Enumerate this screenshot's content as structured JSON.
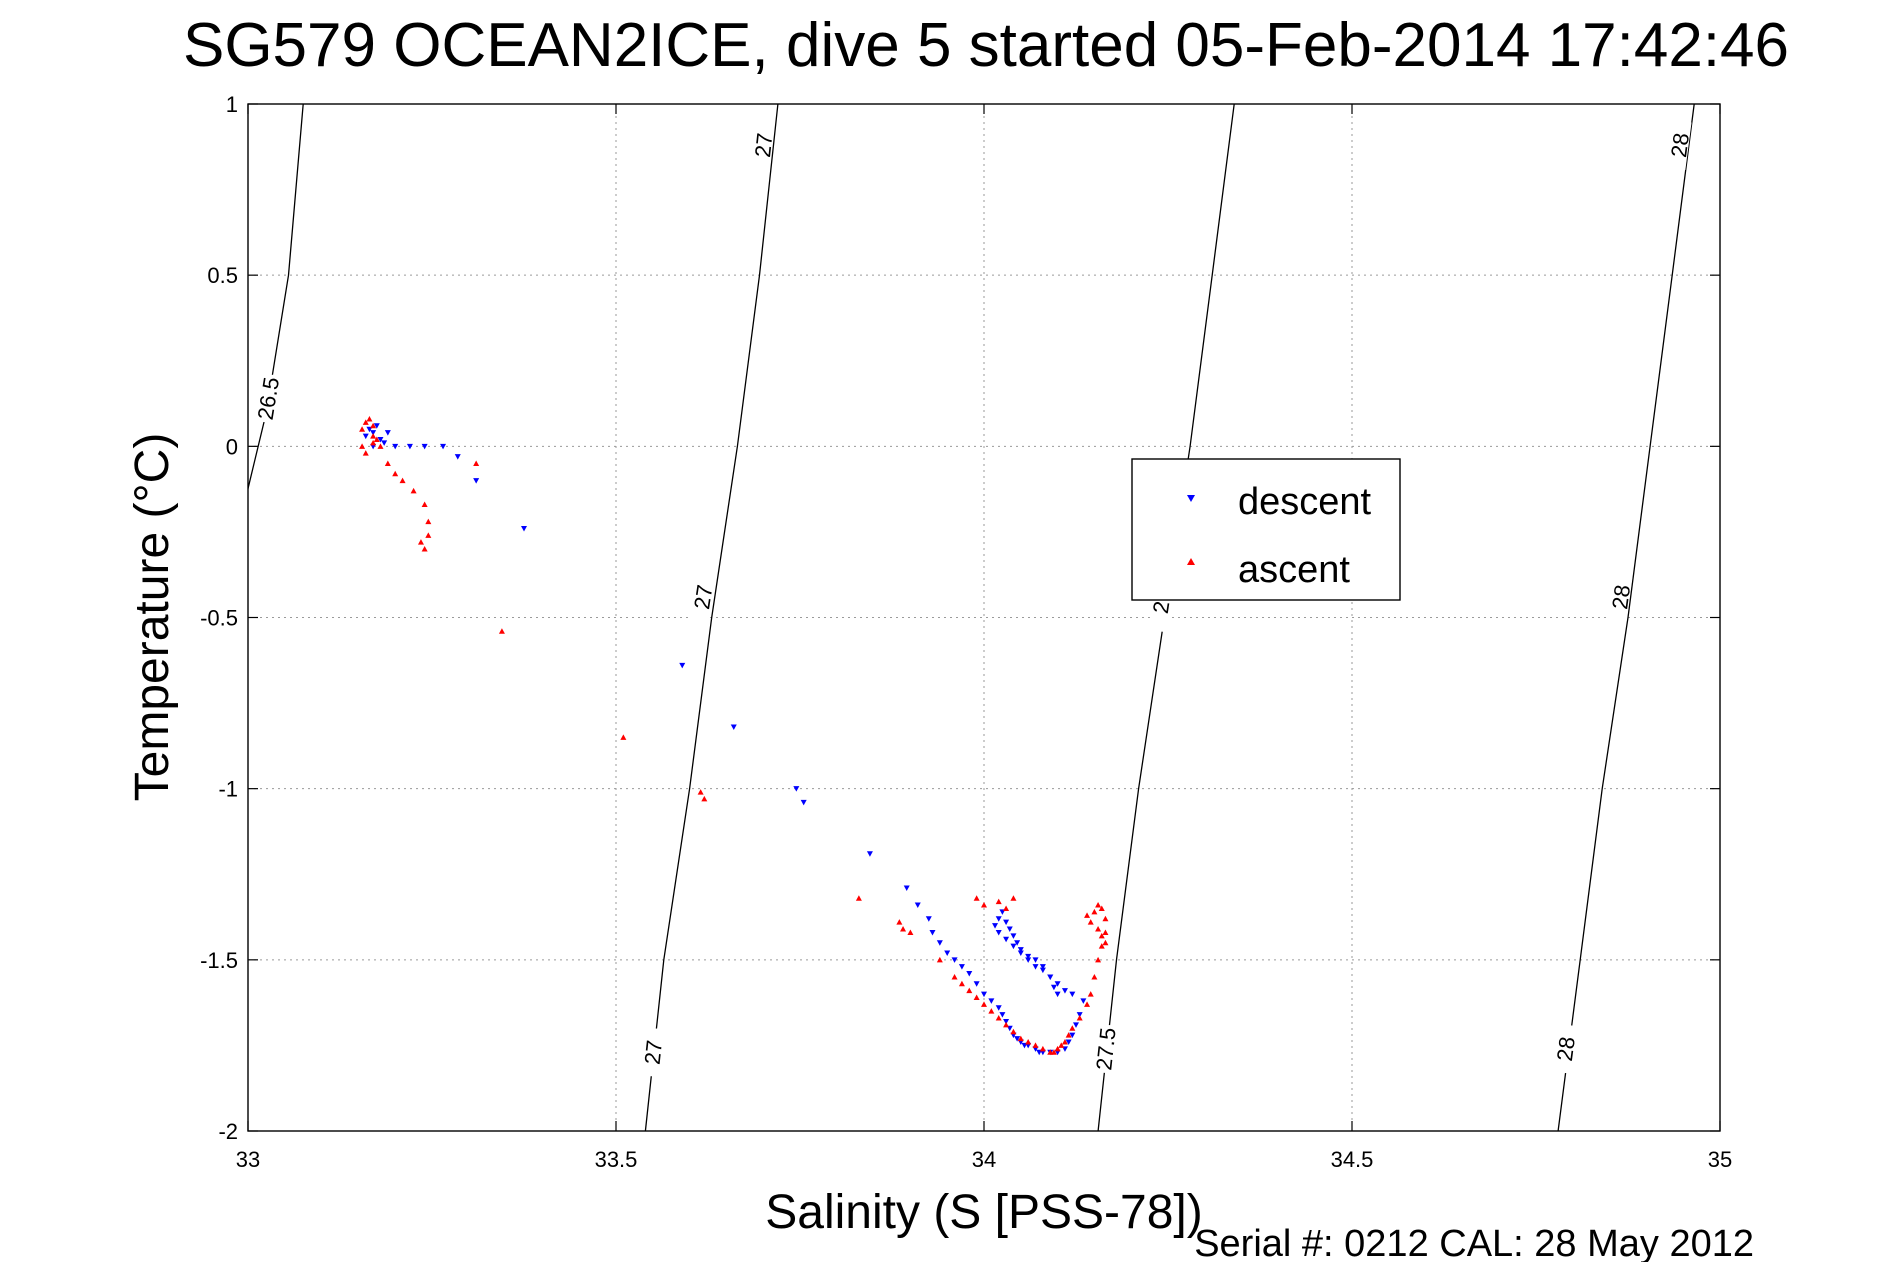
{
  "chart_data": {
    "type": "scatter",
    "title": "SG579 OCEAN2ICE, dive 5 started 05-Feb-2014 17:42:46",
    "xlabel": "Salinity (S [PSS-78])",
    "ylabel": "Temperature (°C)",
    "xlim": [
      33,
      35
    ],
    "ylim": [
      -2,
      1
    ],
    "x_ticks": [
      "33",
      "33.5",
      "34",
      "34.5",
      "35"
    ],
    "y_ticks": [
      "1",
      "0.5",
      "0",
      "-0.5",
      "-1",
      "-1.5",
      "-2"
    ],
    "grid": true,
    "legend_position": "center-right",
    "footer": "Serial #: 0212  CAL: 28 May 2012",
    "density_contours": [
      {
        "label": "26.5",
        "points": [
          [
            32.997,
            -0.15
          ],
          [
            33.025,
            0.1
          ],
          [
            33.055,
            0.5
          ],
          [
            33.075,
            1.0
          ]
        ],
        "label_positions": [
          [
            33.027,
            0.14
          ]
        ]
      },
      {
        "label": "27",
        "points": [
          [
            33.54,
            -2.0
          ],
          [
            33.565,
            -1.5
          ],
          [
            33.6,
            -1.0
          ],
          [
            33.63,
            -0.5
          ],
          [
            33.665,
            0.0
          ],
          [
            33.695,
            0.5
          ],
          [
            33.72,
            1.0
          ]
        ],
        "label_positions": [
          [
            33.55,
            -1.77
          ],
          [
            33.618,
            -0.44
          ],
          [
            33.7,
            0.88
          ]
        ]
      },
      {
        "label": "27.5",
        "display_labels": [
          "27.5",
          "2"
        ],
        "points": [
          [
            34.155,
            -2.0
          ],
          [
            34.18,
            -1.5
          ],
          [
            34.21,
            -1.0
          ],
          [
            34.245,
            -0.5
          ],
          [
            34.28,
            0.0
          ],
          [
            34.31,
            0.5
          ],
          [
            34.34,
            1.0
          ]
        ],
        "label_positions": [
          [
            34.165,
            -1.76
          ],
          [
            34.24,
            -0.47
          ]
        ]
      },
      {
        "label": "28",
        "points": [
          [
            34.78,
            -2.0
          ],
          [
            34.81,
            -1.5
          ],
          [
            34.84,
            -1.0
          ],
          [
            34.875,
            -0.5
          ],
          [
            34.905,
            0.0
          ],
          [
            34.935,
            0.5
          ],
          [
            34.965,
            1.0
          ]
        ],
        "label_positions": [
          [
            34.79,
            -1.76
          ],
          [
            34.865,
            -0.44
          ],
          [
            34.945,
            0.88
          ]
        ]
      }
    ],
    "series": [
      {
        "name": "descent",
        "color": "#0000ff",
        "marker": "triangle-down",
        "x": [
          33.16,
          33.165,
          33.17,
          33.17,
          33.175,
          33.18,
          33.185,
          33.19,
          33.2,
          33.22,
          33.24,
          33.265,
          33.285,
          33.31,
          33.375,
          33.59,
          33.66,
          33.745,
          33.755,
          33.845,
          33.895,
          33.91,
          33.925,
          33.93,
          33.94,
          33.95,
          33.96,
          33.97,
          33.98,
          33.99,
          34.0,
          34.01,
          34.02,
          34.025,
          34.03,
          34.035,
          34.04,
          34.045,
          34.05,
          34.055,
          34.06,
          34.07,
          34.075,
          34.08,
          34.09,
          34.1,
          34.11,
          34.115,
          34.12,
          34.125,
          34.13,
          34.135,
          34.12,
          34.11,
          34.1,
          34.09,
          34.08,
          34.07,
          34.06,
          34.05,
          34.04,
          34.03,
          34.02,
          34.015,
          34.02,
          34.025,
          34.03,
          34.035,
          34.04,
          34.045,
          34.05,
          34.06,
          34.07,
          34.08,
          34.09,
          34.095,
          34.1
        ],
        "y": [
          0.03,
          0.05,
          0.04,
          0.0,
          0.06,
          0.02,
          0.01,
          0.04,
          0.0,
          0.0,
          0.0,
          0.0,
          -0.03,
          -0.1,
          -0.24,
          -0.64,
          -0.82,
          -1.0,
          -1.04,
          -1.19,
          -1.29,
          -1.34,
          -1.38,
          -1.42,
          -1.45,
          -1.48,
          -1.5,
          -1.52,
          -1.54,
          -1.57,
          -1.6,
          -1.62,
          -1.64,
          -1.66,
          -1.68,
          -1.7,
          -1.72,
          -1.73,
          -1.74,
          -1.75,
          -1.75,
          -1.76,
          -1.77,
          -1.77,
          -1.77,
          -1.77,
          -1.76,
          -1.74,
          -1.72,
          -1.69,
          -1.66,
          -1.62,
          -1.6,
          -1.59,
          -1.57,
          -1.55,
          -1.53,
          -1.52,
          -1.5,
          -1.48,
          -1.46,
          -1.44,
          -1.42,
          -1.4,
          -1.38,
          -1.36,
          -1.39,
          -1.41,
          -1.43,
          -1.45,
          -1.47,
          -1.49,
          -1.5,
          -1.52,
          -1.55,
          -1.58,
          -1.6
        ]
      },
      {
        "name": "ascent",
        "color": "#ff0000",
        "marker": "triangle-up",
        "x": [
          33.155,
          33.16,
          33.165,
          33.17,
          33.17,
          33.175,
          33.18,
          33.16,
          33.17,
          33.155,
          33.19,
          33.2,
          33.21,
          33.225,
          33.24,
          33.245,
          33.245,
          33.24,
          33.235,
          33.31,
          33.345,
          33.51,
          33.615,
          33.62,
          33.83,
          33.885,
          33.89,
          33.9,
          33.94,
          33.96,
          33.97,
          33.98,
          33.99,
          34.0,
          34.01,
          34.02,
          34.03,
          34.04,
          34.05,
          34.06,
          34.07,
          34.08,
          34.09,
          34.095,
          34.1,
          34.105,
          34.11,
          34.115,
          34.12,
          34.13,
          34.14,
          34.145,
          34.15,
          34.155,
          34.16,
          34.165,
          34.165,
          34.16,
          34.155,
          34.15,
          34.14,
          34.145,
          34.155,
          34.16,
          34.165,
          33.99,
          34.0,
          34.02,
          34.03,
          34.04
        ],
        "y": [
          0.05,
          0.07,
          0.08,
          0.06,
          0.03,
          0.02,
          0.0,
          -0.02,
          0.01,
          0.0,
          -0.05,
          -0.08,
          -0.1,
          -0.13,
          -0.17,
          -0.22,
          -0.26,
          -0.3,
          -0.28,
          -0.05,
          -0.54,
          -0.85,
          -1.01,
          -1.03,
          -1.32,
          -1.39,
          -1.41,
          -1.42,
          -1.5,
          -1.55,
          -1.57,
          -1.59,
          -1.61,
          -1.63,
          -1.65,
          -1.67,
          -1.69,
          -1.71,
          -1.73,
          -1.74,
          -1.75,
          -1.76,
          -1.77,
          -1.77,
          -1.76,
          -1.75,
          -1.74,
          -1.72,
          -1.7,
          -1.67,
          -1.63,
          -1.6,
          -1.55,
          -1.5,
          -1.46,
          -1.42,
          -1.38,
          -1.35,
          -1.34,
          -1.36,
          -1.37,
          -1.39,
          -1.41,
          -1.43,
          -1.45,
          -1.32,
          -1.34,
          -1.33,
          -1.35,
          -1.32
        ]
      }
    ]
  }
}
